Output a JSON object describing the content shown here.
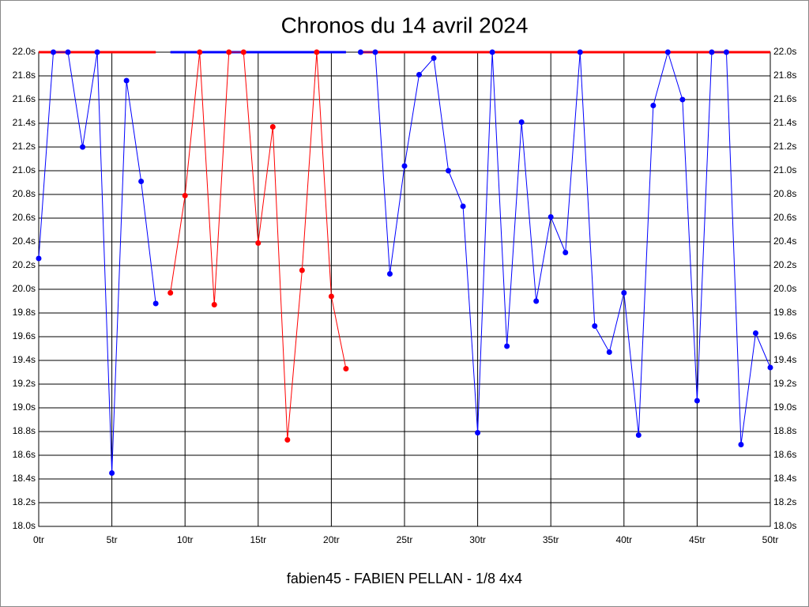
{
  "chart_data": {
    "type": "line",
    "title": "Chronos du 14 avril 2024",
    "footer": "fabien45 - FABIEN PELLAN - 1/8 4x4",
    "x": [
      0,
      1,
      2,
      3,
      4,
      5,
      6,
      7,
      8,
      9,
      10,
      11,
      12,
      13,
      14,
      15,
      16,
      17,
      18,
      19,
      20,
      21,
      22,
      23,
      24,
      25,
      26,
      27,
      28,
      29,
      30,
      31,
      32,
      33,
      34,
      35,
      36,
      37,
      38,
      39,
      40,
      41,
      42,
      43,
      44,
      45,
      46,
      47,
      48,
      49,
      50
    ],
    "xlim": [
      0,
      50
    ],
    "xticks": [
      {
        "value": 0,
        "label": "0tr"
      },
      {
        "value": 5,
        "label": "5tr"
      },
      {
        "value": 10,
        "label": "10tr"
      },
      {
        "value": 15,
        "label": "15tr"
      },
      {
        "value": 20,
        "label": "20tr"
      },
      {
        "value": 25,
        "label": "25tr"
      },
      {
        "value": 30,
        "label": "30tr"
      },
      {
        "value": 35,
        "label": "35tr"
      },
      {
        "value": 40,
        "label": "40tr"
      },
      {
        "value": 45,
        "label": "45tr"
      },
      {
        "value": 50,
        "label": "50tr"
      }
    ],
    "ylim": [
      18.0,
      22.0
    ],
    "yticks": [
      {
        "value": 18.0,
        "label": "18.0s"
      },
      {
        "value": 18.2,
        "label": "18.2s"
      },
      {
        "value": 18.4,
        "label": "18.4s"
      },
      {
        "value": 18.6,
        "label": "18.6s"
      },
      {
        "value": 18.8,
        "label": "18.8s"
      },
      {
        "value": 19.0,
        "label": "19.0s"
      },
      {
        "value": 19.2,
        "label": "19.2s"
      },
      {
        "value": 19.4,
        "label": "19.4s"
      },
      {
        "value": 19.6,
        "label": "19.6s"
      },
      {
        "value": 19.8,
        "label": "19.8s"
      },
      {
        "value": 20.0,
        "label": "20.0s"
      },
      {
        "value": 20.2,
        "label": "20.2s"
      },
      {
        "value": 20.4,
        "label": "20.4s"
      },
      {
        "value": 20.6,
        "label": "20.6s"
      },
      {
        "value": 20.8,
        "label": "20.8s"
      },
      {
        "value": 21.0,
        "label": "21.0s"
      },
      {
        "value": 21.2,
        "label": "21.2s"
      },
      {
        "value": 21.4,
        "label": "21.4s"
      },
      {
        "value": 21.6,
        "label": "21.6s"
      },
      {
        "value": 21.8,
        "label": "21.8s"
      },
      {
        "value": 22.0,
        "label": "22.0s"
      }
    ],
    "grid": true,
    "series": [
      {
        "color": "#ff0000",
        "markers": false,
        "width": 3,
        "values": [
          22,
          22,
          22,
          22,
          22,
          22,
          22,
          22,
          22,
          null,
          null,
          null,
          null,
          null,
          null,
          null,
          null,
          null,
          null,
          null,
          null,
          null,
          22,
          22,
          22,
          22,
          22,
          22,
          22,
          22,
          22,
          22,
          22,
          22,
          22,
          22,
          22,
          22,
          22,
          22,
          22,
          22,
          22,
          22,
          22,
          22,
          22,
          22,
          22,
          22,
          22
        ]
      },
      {
        "color": "#0000ff",
        "markers": false,
        "width": 3,
        "values": [
          null,
          null,
          null,
          null,
          null,
          null,
          null,
          null,
          null,
          22,
          22,
          22,
          22,
          22,
          22,
          22,
          22,
          22,
          22,
          22,
          22,
          22,
          null,
          null,
          null,
          null,
          null,
          null,
          null,
          null,
          null,
          null,
          null,
          null,
          null,
          null,
          null,
          null,
          null,
          null,
          null,
          null,
          null,
          null,
          null,
          null,
          null,
          null,
          null,
          null,
          null
        ]
      },
      {
        "color": "#0000ff",
        "markers": true,
        "width": 1,
        "values": [
          20.26,
          22,
          22,
          21.2,
          22,
          18.45,
          21.76,
          20.91,
          19.88,
          null,
          null,
          null,
          null,
          null,
          null,
          null,
          null,
          null,
          null,
          null,
          null,
          null,
          22,
          22,
          20.13,
          21.04,
          21.81,
          21.95,
          21.0,
          20.7,
          18.79,
          22,
          19.52,
          21.41,
          19.9,
          20.61,
          20.31,
          22,
          19.69,
          19.47,
          19.97,
          18.77,
          21.55,
          22,
          21.6,
          19.06,
          22,
          22,
          18.69,
          19.63,
          19.34
        ]
      },
      {
        "color": "#ff0000",
        "markers": true,
        "width": 1,
        "values": [
          null,
          null,
          null,
          null,
          null,
          null,
          null,
          null,
          null,
          19.97,
          20.79,
          22,
          19.87,
          22,
          22,
          20.39,
          21.37,
          18.73,
          20.16,
          22,
          19.94,
          19.33,
          null,
          null,
          null,
          null,
          null,
          null,
          null,
          null,
          null,
          null,
          null,
          null,
          null,
          null,
          null,
          null,
          null,
          null,
          null,
          null,
          null,
          null,
          null,
          null,
          null,
          null,
          null,
          null,
          null
        ]
      }
    ]
  }
}
